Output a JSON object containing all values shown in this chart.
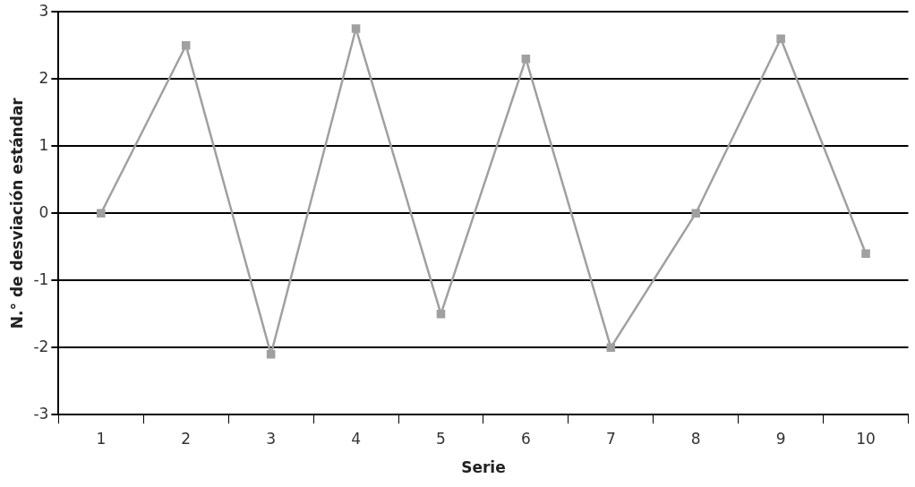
{
  "chart_data": {
    "type": "line",
    "xlabel": "Serie",
    "ylabel": "N.° de desviación estándar",
    "categories": [
      "1",
      "2",
      "3",
      "4",
      "5",
      "6",
      "7",
      "8",
      "9",
      "10"
    ],
    "series": [
      {
        "color": "#a0a0a0",
        "values": [
          0,
          2.5,
          -2.1,
          2.75,
          -1.5,
          2.3,
          -2.0,
          0,
          2.6,
          -0.6
        ]
      }
    ],
    "ylim": [
      -3,
      3
    ],
    "yticks": [
      -3,
      -2,
      -1,
      0,
      1,
      2,
      3
    ],
    "grid": "y",
    "legend": false,
    "marker": "square",
    "line_style": "solid"
  }
}
